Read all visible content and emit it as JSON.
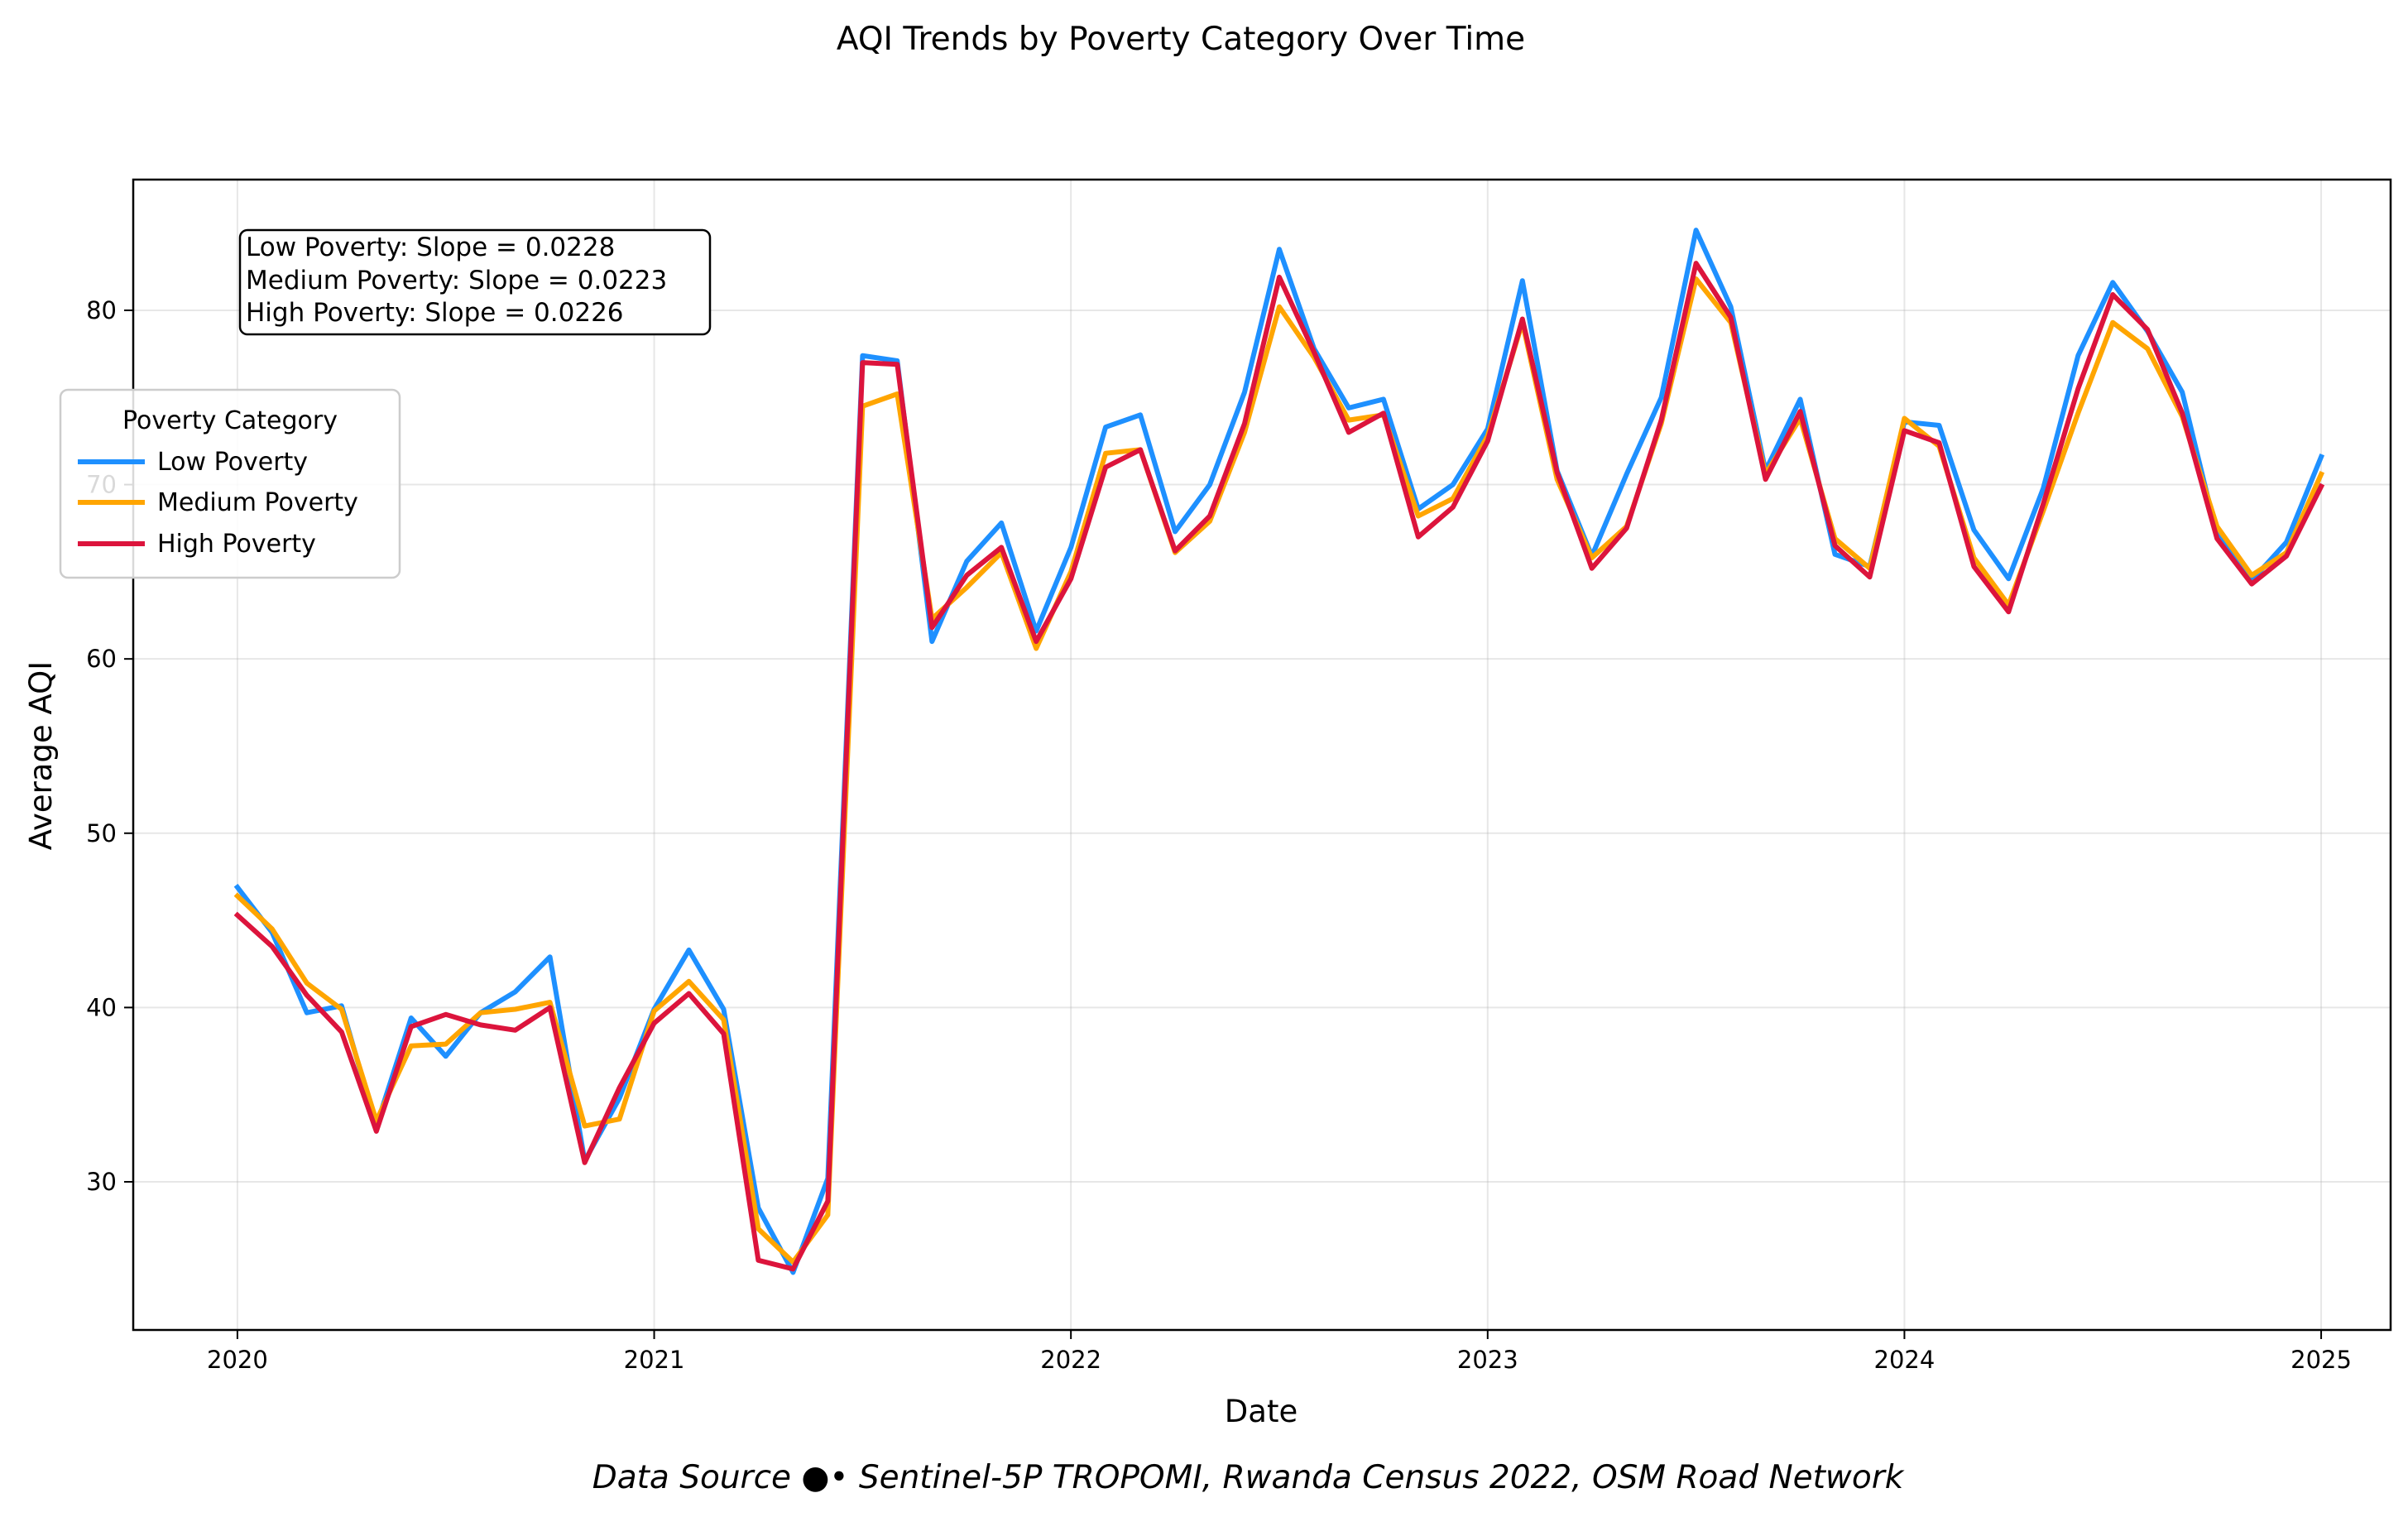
{
  "chart_data": {
    "type": "line",
    "title": "AQI Trends by Poverty Category Over Time",
    "xlabel": "Date",
    "ylabel": "Average AQI",
    "source": "Data Source ●• Sentinel-5P TROPOMI, Rwanda Census 2022, OSM Road Network",
    "x_ticks": [
      "2020",
      "2021",
      "2022",
      "2023",
      "2024",
      "2025"
    ],
    "y_ticks": [
      30,
      40,
      50,
      60,
      70,
      80
    ],
    "xlim": [
      "2019-10",
      "2025-03"
    ],
    "ylim": [
      21.5,
      87.5
    ],
    "grid": true,
    "legend": {
      "title": "Poverty Category",
      "placement": "upper-left",
      "entries": [
        "Low Poverty",
        "Medium Poverty",
        "High Poverty"
      ]
    },
    "annotation": [
      "Low Poverty: Slope = 0.0228",
      "Medium Poverty: Slope = 0.0223",
      "High Poverty: Slope = 0.0226"
    ],
    "x": [
      "2020-01",
      "2020-02",
      "2020-03",
      "2020-04",
      "2020-05",
      "2020-06",
      "2020-07",
      "2020-08",
      "2020-09",
      "2020-10",
      "2020-11",
      "2020-12",
      "2021-01",
      "2021-02",
      "2021-03",
      "2021-04",
      "2021-05",
      "2021-06",
      "2021-07",
      "2021-08",
      "2021-09",
      "2021-10",
      "2021-11",
      "2021-12",
      "2022-01",
      "2022-02",
      "2022-03",
      "2022-04",
      "2022-05",
      "2022-06",
      "2022-07",
      "2022-08",
      "2022-09",
      "2022-10",
      "2022-11",
      "2022-12",
      "2023-01",
      "2023-02",
      "2023-03",
      "2023-04",
      "2023-05",
      "2023-06",
      "2023-07",
      "2023-08",
      "2023-09",
      "2023-10",
      "2023-11",
      "2023-12",
      "2024-01",
      "2024-02",
      "2024-03",
      "2024-04",
      "2024-05",
      "2024-06",
      "2024-07",
      "2024-08",
      "2024-09",
      "2024-10",
      "2024-11",
      "2024-12",
      "2025-01"
    ],
    "series": [
      {
        "name": "Low Poverty",
        "color": "#1e90ff",
        "values": [
          46.9,
          44.3,
          39.7,
          40.1,
          33.2,
          39.4,
          37.2,
          39.7,
          40.9,
          42.9,
          31.2,
          34.8,
          39.9,
          43.3,
          39.9,
          28.5,
          24.8,
          30.2,
          77.4,
          77.1,
          61.0,
          65.6,
          67.8,
          61.6,
          66.4,
          73.3,
          74.0,
          67.3,
          70.0,
          75.3,
          83.5,
          77.8,
          74.4,
          74.9,
          68.6,
          70.0,
          73.2,
          81.7,
          70.8,
          65.9,
          70.6,
          75.0,
          84.6,
          80.2,
          70.8,
          74.9,
          66.0,
          65.3,
          73.6,
          73.4,
          67.4,
          64.6,
          69.8,
          77.4,
          81.6,
          78.8,
          75.3,
          67.1,
          64.5,
          66.7,
          71.6
        ]
      },
      {
        "name": "Medium Poverty",
        "color": "#ffa500",
        "values": [
          46.4,
          44.5,
          41.4,
          39.9,
          33.5,
          37.8,
          37.9,
          39.7,
          39.9,
          40.3,
          33.2,
          33.6,
          39.8,
          41.5,
          39.3,
          27.3,
          25.4,
          28.1,
          74.5,
          75.2,
          62.3,
          64.1,
          66.1,
          60.6,
          65.0,
          71.8,
          72.0,
          66.1,
          67.9,
          73.0,
          80.2,
          77.3,
          73.7,
          74.0,
          68.2,
          69.2,
          72.8,
          79.3,
          70.3,
          65.8,
          67.6,
          73.5,
          81.8,
          79.3,
          70.6,
          73.8,
          66.9,
          65.2,
          73.8,
          72.2,
          65.8,
          63.1,
          68.5,
          74.1,
          79.3,
          77.8,
          73.9,
          67.6,
          64.8,
          66.1,
          70.6
        ]
      },
      {
        "name": "High Poverty",
        "color": "#dc143c",
        "values": [
          45.3,
          43.5,
          40.7,
          38.6,
          32.9,
          38.9,
          39.6,
          39.0,
          38.7,
          40.0,
          31.1,
          35.4,
          39.1,
          40.8,
          38.5,
          25.5,
          25.0,
          28.9,
          77.0,
          76.9,
          61.8,
          64.8,
          66.4,
          61.0,
          64.6,
          71.0,
          72.0,
          66.2,
          68.2,
          73.5,
          81.9,
          77.6,
          73.0,
          74.1,
          67.0,
          68.7,
          72.5,
          79.5,
          70.7,
          65.2,
          67.5,
          73.7,
          82.7,
          79.6,
          70.3,
          74.2,
          66.5,
          64.7,
          73.1,
          72.4,
          65.3,
          62.7,
          68.9,
          75.5,
          80.9,
          78.9,
          74.1,
          66.9,
          64.3,
          65.9,
          69.9
        ]
      }
    ]
  }
}
